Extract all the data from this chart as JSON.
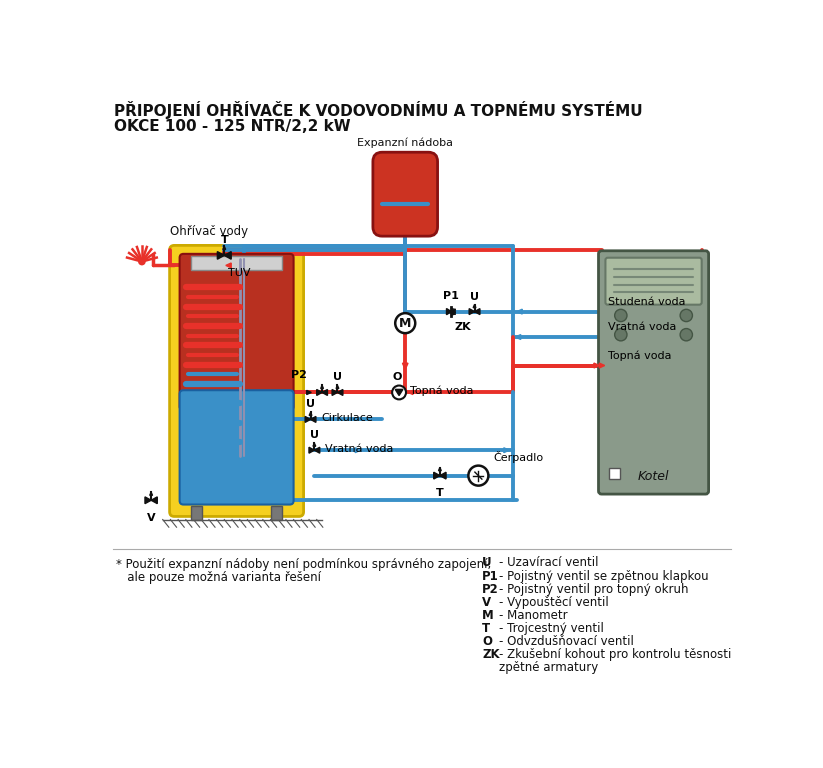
{
  "title1": "PŘIPOJENÍ OHŘÍVAČE K VODOVODNÍMU A TOPNÉMU SYSTÉMU",
  "title2": "OKCE 100 - 125 NTR/2,2 kW",
  "footnote_line1": "* Použití expanzní nádoby není podmínkou správného zapojení,",
  "footnote_line2": "   ale pouze možná varianta řešení",
  "legend_items": [
    [
      "U",
      "Uzavírací ventil"
    ],
    [
      "P1",
      "Pojistný ventil se zpětnou klapkou"
    ],
    [
      "P2",
      "Pojistný ventil pro topný okruh"
    ],
    [
      "V",
      "Vypouštěcí ventil"
    ],
    [
      "M",
      "Manometr"
    ],
    [
      "T",
      "Trojcestný ventil"
    ],
    [
      "O",
      "Odvzdušňovací ventil"
    ],
    [
      "ZK",
      "Zkušební kohout pro kontrolu těsnosti"
    ]
  ],
  "legend_zk_line2": "      zpětné armatury",
  "colors": {
    "red": "#e8312a",
    "blue": "#3a90c8",
    "yellow": "#f5d020",
    "black": "#111111",
    "white": "#ffffff",
    "gray": "#888888",
    "lgray": "#bbbbbb",
    "tank_outer_yellow": "#f5d020",
    "tank_red": "#c0392b",
    "tank_blue": "#3a90c8",
    "boiler_gray": "#8a9a8a",
    "expansion_red": "#cc3322"
  }
}
